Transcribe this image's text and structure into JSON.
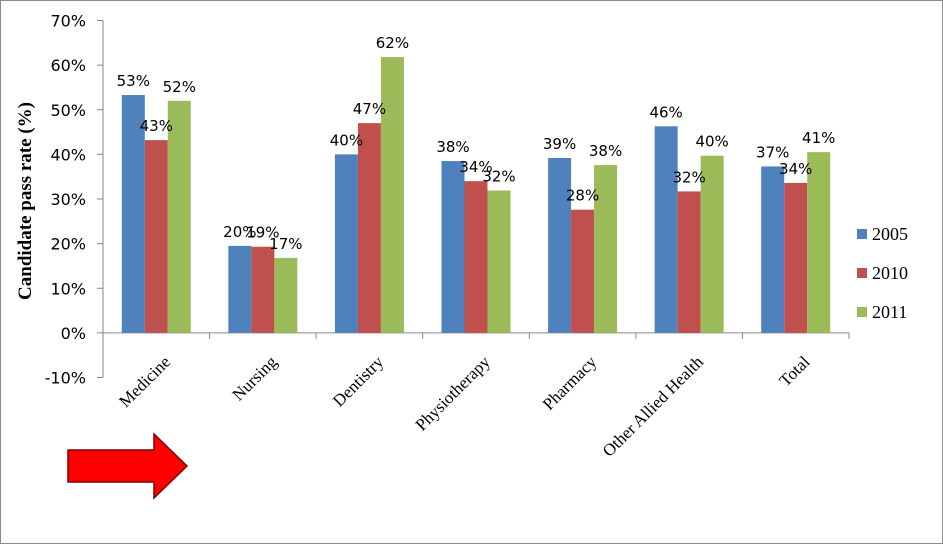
{
  "chart_data": {
    "type": "bar",
    "title": "",
    "xlabel": "",
    "ylabel": "Candidate pass rate (%)",
    "ylim": [
      -10,
      70
    ],
    "ytick_step": 10,
    "ytick_labels": [
      "-10%",
      "0%",
      "10%",
      "20%",
      "30%",
      "40%",
      "50%",
      "60%",
      "70%"
    ],
    "grid": false,
    "legend_position": "right",
    "categories": [
      "Medicine",
      "Nursing",
      "Dentistry",
      "Physiotherapy",
      "Pharmacy",
      "Other Allied Health",
      "Total"
    ],
    "series": [
      {
        "name": "2005",
        "color": "#4f81bd",
        "values": [
          53.3,
          19.5,
          40,
          38.5,
          39.2,
          46.3,
          37.3
        ],
        "labels": [
          "53%",
          "20%",
          "40%",
          "38%",
          "39%",
          "46%",
          "37%"
        ]
      },
      {
        "name": "2010",
        "color": "#c0504d",
        "values": [
          43.2,
          19.3,
          47,
          34,
          27.6,
          31.7,
          33.6
        ],
        "labels": [
          "43%",
          "19%",
          "47%",
          "34%",
          "28%",
          "32%",
          "34%"
        ]
      },
      {
        "name": "2011",
        "color": "#9bbb59",
        "values": [
          52,
          16.8,
          61.8,
          31.9,
          37.6,
          39.7,
          40.5
        ],
        "labels": [
          "52%",
          "17%",
          "62%",
          "32%",
          "38%",
          "40%",
          "41%"
        ]
      }
    ]
  },
  "annotation": {
    "arrow_icon": "right-arrow-icon",
    "color": "#ff0000"
  }
}
